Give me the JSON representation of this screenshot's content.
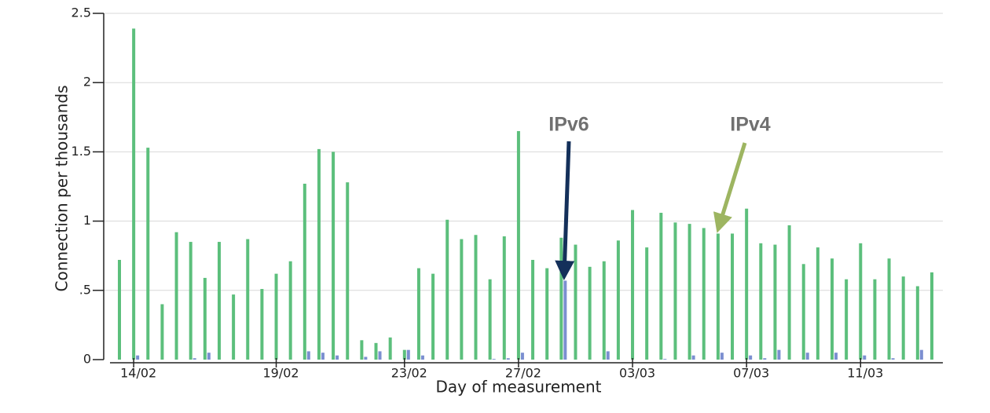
{
  "chart_data": {
    "type": "bar",
    "y_label": "Connection per thousands",
    "x_label": "Day of measurement",
    "annotations": [
      "IPv6",
      "IPv4"
    ],
    "categories": [
      null,
      "14/02",
      null,
      null,
      null,
      null,
      null,
      null,
      null,
      null,
      null,
      "19/02",
      null,
      null,
      null,
      null,
      null,
      null,
      null,
      null,
      "23/02",
      null,
      null,
      null,
      null,
      null,
      null,
      null,
      "27/02",
      null,
      null,
      null,
      null,
      null,
      null,
      null,
      "03/03",
      null,
      null,
      null,
      null,
      null,
      null,
      null,
      "07/03",
      null,
      null,
      null,
      null,
      null,
      null,
      null,
      "11/03",
      null,
      null,
      null,
      null,
      null
    ],
    "series": [
      {
        "name": "IPv4",
        "color": "#5cbf7c",
        "values": [
          0.72,
          2.39,
          1.53,
          0.4,
          0.92,
          0.85,
          0.59,
          0.85,
          0.47,
          0.87,
          0.51,
          0.62,
          0.71,
          1.27,
          1.52,
          1.5,
          1.28,
          0.14,
          0.12,
          0.16,
          0.07,
          0.66,
          0.62,
          1.01,
          0.87,
          0.9,
          0.58,
          0.89,
          1.65,
          0.72,
          0.66,
          0.88,
          0.83,
          0.67,
          0.71,
          0.86,
          1.08,
          0.81,
          1.06,
          0.99,
          0.98,
          0.95,
          0.91,
          0.91,
          1.09,
          0.84,
          0.83,
          0.97,
          0.69,
          0.81,
          0.73,
          0.58,
          0.84,
          0.58,
          0.73,
          0.6,
          0.53,
          0.63
        ]
      },
      {
        "name": "IPv6",
        "color": "#7b8fd0",
        "values": [
          0,
          0.03,
          0,
          0,
          0,
          0.01,
          0.05,
          0,
          0,
          0,
          0,
          0,
          0,
          0.06,
          0.05,
          0.03,
          0,
          0.02,
          0.06,
          0,
          0.07,
          0.03,
          0,
          0,
          0,
          0,
          0.005,
          0.01,
          0.05,
          0,
          0,
          0.57,
          0,
          0,
          0.06,
          0,
          0,
          0,
          0.005,
          0,
          0.03,
          0,
          0.05,
          0,
          0.03,
          0.01,
          0.07,
          0,
          0.05,
          0,
          0.05,
          0,
          0.03,
          0,
          0.01,
          0,
          0.07,
          0
        ]
      }
    ],
    "ylim": [
      0,
      2.5
    ],
    "yticks": [
      0,
      {
        "value": 0.5,
        "label": ".5"
      },
      1,
      1.5,
      2,
      2.5
    ],
    "grid": true
  }
}
